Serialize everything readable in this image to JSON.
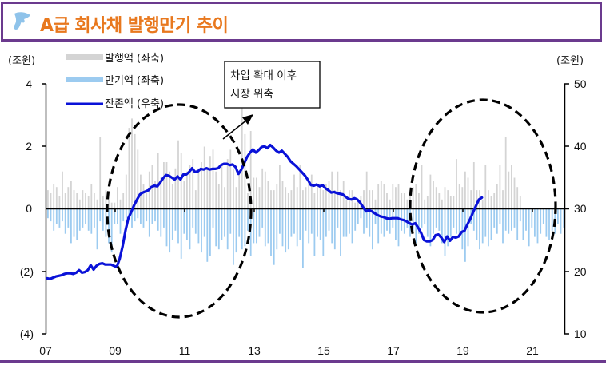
{
  "header": {
    "title": "A급 회사채 발행만기 추이",
    "icon": "brush-stroke-icon",
    "colors": {
      "border": "#6b3a8e",
      "title": "#e8781e",
      "icon": "#8fc3ea"
    }
  },
  "axes": {
    "left_unit": "(조원)",
    "right_unit": "(조원)",
    "left_ticks": [
      "4",
      "2",
      "0",
      "(2)",
      "(4)"
    ],
    "right_ticks": [
      "50",
      "40",
      "30",
      "20",
      "10"
    ],
    "x_ticks": [
      "07",
      "09",
      "11",
      "13",
      "15",
      "17",
      "19",
      "21"
    ]
  },
  "legend": {
    "items": [
      {
        "label": "발행액 (좌축)",
        "color": "#d4d4d4",
        "type": "bar"
      },
      {
        "label": "만기액 (좌축)",
        "color": "#9ccbf0",
        "type": "bar"
      },
      {
        "label": "잔존액 (우축)",
        "color": "#0a12d8",
        "type": "line"
      }
    ]
  },
  "annotation": {
    "line1": "차입 확대 이후",
    "line2": "시장 위축"
  },
  "chart_data": {
    "type": "bar+line",
    "title": "A급 회사채 발행만기 추이",
    "xlabel": "",
    "ylabel_left": "(조원)",
    "ylabel_right": "(조원)",
    "ylim_left": [
      -4,
      4
    ],
    "ylim_right": [
      10,
      50
    ],
    "x_tick_labels": [
      "07",
      "09",
      "11",
      "13",
      "15",
      "17",
      "19",
      "21"
    ],
    "x_range": [
      "2007-01",
      "2021-12"
    ],
    "grid": false,
    "legend_position": "top-left",
    "series": [
      {
        "name": "발행액 (좌축)",
        "axis": "left",
        "type": "bar",
        "color": "#d4d4d4",
        "start": "2007-01",
        "frequency": "monthly",
        "values": [
          0.6,
          0.5,
          0.8,
          0.7,
          0.4,
          1.2,
          0.5,
          0.7,
          0.9,
          0.6,
          0.5,
          0.3,
          0.6,
          0.5,
          0.4,
          0.8,
          0.5,
          0.3,
          2.3,
          0.4,
          0.6,
          0.3,
          0.2,
          0.2,
          0.7,
          0.3,
          0.5,
          1.1,
          2.6,
          2.9,
          2.4,
          1.9,
          1.1,
          0.8,
          0.6,
          1.2,
          1.4,
          0.9,
          1.8,
          1.0,
          1.5,
          1.5,
          1.2,
          0.8,
          1.3,
          2.2,
          1.8,
          0.9,
          1.2,
          1.4,
          1.6,
          0.6,
          1.3,
          1.5,
          2.0,
          1.3,
          1.7,
          1.9,
          1.2,
          0.8,
          1.4,
          0.7,
          1.6,
          1.9,
          1.3,
          0.7,
          1.1,
          3.3,
          2.4,
          0.5,
          2.5,
          1.0,
          1.0,
          0.7,
          1.3,
          1.2,
          0.9,
          0.6,
          0.6,
          0.8,
          1.4,
          0.9,
          0.7,
          0.5,
          0.6,
          1.1,
          0.7,
          1.4,
          0.6,
          0.7,
          0.9,
          1.1,
          0.5,
          0.7,
          0.7,
          0.6,
          0.8,
          0.9,
          1.2,
          0.6,
          1.2,
          0.6,
          0.9,
          0.3,
          0.6,
          0.6,
          0.2,
          0.3,
          0.4,
          0.6,
          1.2,
          0.6,
          0.6,
          0.3,
          0.8,
          0.9,
          0.8,
          0.5,
          0.3,
          0.8,
          0.7,
          0.8,
          0.5,
          0.5,
          0.3,
          0.6,
          0.7,
          0.8,
          0.5,
          1.4,
          0.3,
          0.4,
          1.1,
          0.9,
          0.7,
          0.5,
          0.3,
          0.7,
          0.6,
          0.4,
          0.4,
          1.6,
          0.8,
          0.7,
          1.2,
          1.0,
          0.6,
          1.5,
          0.6,
          0.6,
          0.3,
          1.4,
          0.6,
          0.4,
          0.5,
          0.8,
          1.4,
          0.6,
          2.3,
          1.2,
          1.4,
          1.0,
          0.7,
          0.4,
          0,
          0,
          0,
          0,
          0,
          0,
          0,
          0,
          0,
          0,
          0,
          0,
          0,
          0,
          0,
          0
        ]
      },
      {
        "name": "만기액 (좌축)",
        "axis": "left",
        "type": "bar",
        "color": "#9ccbf0",
        "start": "2007-01",
        "frequency": "monthly",
        "values": [
          -0.3,
          -0.4,
          -0.7,
          -0.5,
          -0.6,
          -0.4,
          -0.8,
          -0.6,
          -1.1,
          -0.9,
          -1.0,
          -0.7,
          -0.6,
          -0.5,
          -0.7,
          -0.8,
          -0.6,
          -1.3,
          -0.4,
          -0.7,
          -0.9,
          -1.1,
          -1.4,
          -0.5,
          -0.5,
          -0.8,
          -0.4,
          -0.3,
          -0.2,
          -0.6,
          -0.4,
          -0.3,
          -0.5,
          -0.6,
          -0.4,
          -0.9,
          -0.5,
          -0.4,
          -0.7,
          -0.9,
          -0.6,
          -1.2,
          -1.4,
          -1.0,
          -0.7,
          -1.1,
          -1.6,
          -0.8,
          -1.0,
          -1.3,
          -0.6,
          -0.8,
          -1.1,
          -1.4,
          -0.9,
          -1.7,
          -1.5,
          -0.6,
          -1.2,
          -1.3,
          -1.0,
          -0.9,
          -1.3,
          -0.8,
          -1.8,
          -1.4,
          -0.9,
          -1.3,
          -1.2,
          -0.7,
          -1.5,
          -1.1,
          -1.1,
          -0.9,
          -0.6,
          -1.2,
          -1.1,
          -1.5,
          -1.8,
          -1.3,
          -0.8,
          -1.2,
          -1.4,
          -1.3,
          -0.9,
          -0.8,
          -1.2,
          -1.0,
          -1.9,
          -0.7,
          -1.1,
          -0.8,
          -1.5,
          -0.9,
          -1.0,
          -1.5,
          -0.9,
          -0.7,
          -1.1,
          -1.3,
          -0.6,
          -1.5,
          -0.9,
          -0.9,
          -0.8,
          -1.1,
          -0.7,
          -0.5,
          -0.3,
          -0.8,
          -0.6,
          -0.9,
          -1.3,
          -0.5,
          -1.1,
          -0.8,
          -0.9,
          -0.7,
          -0.8,
          -0.6,
          -1.0,
          -1.2,
          -0.7,
          -0.8,
          -0.6,
          -0.9,
          -0.7,
          -1.1,
          -0.8,
          -0.6,
          -0.5,
          -0.9,
          -1.2,
          -0.8,
          -0.6,
          -0.7,
          -1.1,
          -1.5,
          -1.2,
          -0.9,
          -0.6,
          -0.8,
          -0.8,
          -1.3,
          -1.7,
          -1.2,
          -0.5,
          -0.7,
          -1.0,
          -1.3,
          -1.1,
          -0.9,
          -1.2,
          -1.0,
          -0.6,
          -0.8,
          -0.5,
          -1.1,
          -0.7,
          -0.8,
          -0.7,
          -0.6,
          -1.0,
          -0.4,
          -1.0,
          -0.7,
          -1.2,
          -0.6,
          -0.9,
          -1.1,
          -0.8,
          -0.5,
          -0.9,
          -1.0,
          -0.7,
          -0.8,
          -0.5,
          -0.8,
          -0.6,
          0
        ]
      },
      {
        "name": "잔존액 (우축)",
        "axis": "right",
        "type": "line",
        "color": "#0a12d8",
        "start": "2007-01",
        "frequency": "monthly",
        "values": [
          18.9,
          18.8,
          19.0,
          19.2,
          19.3,
          19.4,
          19.6,
          19.7,
          19.7,
          19.6,
          19.8,
          20.2,
          19.8,
          19.9,
          20.2,
          21.0,
          20.3,
          20.9,
          21.2,
          21.3,
          21.1,
          21.1,
          21.1,
          20.9,
          20.7,
          22.0,
          24.0,
          26.5,
          28.5,
          29.5,
          30.6,
          31.5,
          32.3,
          32.6,
          32.8,
          33.0,
          33.5,
          33.7,
          33.6,
          34.2,
          34.9,
          35.4,
          35.3,
          35.0,
          34.7,
          35.2,
          34.7,
          35.5,
          35.5,
          35.9,
          36.5,
          35.9,
          36.0,
          36.4,
          36.3,
          36.5,
          36.3,
          36.4,
          36.4,
          36.5,
          37.0,
          37.2,
          37.2,
          37.0,
          37.1,
          36.7,
          35.6,
          36.3,
          37.3,
          38.3,
          39.0,
          39.5,
          39.0,
          39.4,
          39.9,
          40.0,
          39.7,
          40.2,
          39.8,
          39.3,
          39.0,
          39.3,
          38.8,
          38.3,
          37.6,
          37.2,
          36.8,
          36.3,
          35.8,
          35.3,
          34.6,
          33.8,
          33.7,
          33.9,
          33.6,
          33.8,
          33.3,
          33.0,
          32.6,
          32.7,
          32.5,
          32.4,
          32.3,
          31.9,
          31.6,
          31.5,
          31.7,
          31.5,
          31.0,
          30.3,
          29.6,
          29.8,
          29.6,
          29.3,
          29.0,
          28.8,
          28.7,
          28.5,
          28.4,
          28.5,
          28.5,
          28.5,
          28.3,
          28.2,
          28.0,
          27.7,
          27.5,
          27.7,
          27.0,
          26.2,
          25.0,
          24.8,
          24.8,
          25.0,
          25.8,
          25.9,
          25.4,
          24.7,
          25.6,
          24.9,
          25.5,
          25.4,
          25.6,
          26.3,
          26.5,
          27.5,
          28.4,
          29.5,
          30.5,
          31.5,
          31.8
        ]
      }
    ],
    "annotations": [
      {
        "text": "차입 확대 이후 시장 위축",
        "type": "callout-box-with-arrow"
      },
      {
        "type": "dashed-ellipse",
        "span": [
          "2008-09",
          "2012-12"
        ]
      },
      {
        "type": "dashed-ellipse",
        "span": [
          "2017-06",
          "2021-12"
        ]
      }
    ]
  }
}
